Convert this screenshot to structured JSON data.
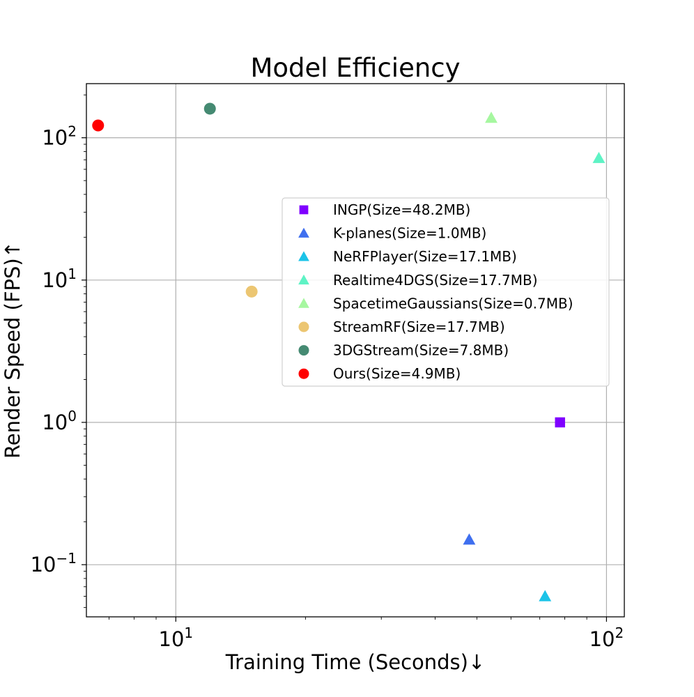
{
  "chart_data": {
    "type": "scatter",
    "title": "Model Efficiency",
    "xlabel": "Training Time (Seconds)↓",
    "ylabel": "Render Speed (FPS)↑",
    "xscale": "log",
    "yscale": "log",
    "xlim": [
      6.2,
      110
    ],
    "ylim": [
      0.043,
      240
    ],
    "grid": true,
    "legend_position": "center-right",
    "x_ticks": [
      {
        "value": 10,
        "base": "10",
        "exp": "1"
      },
      {
        "value": 100,
        "base": "10",
        "exp": "2"
      }
    ],
    "y_ticks": [
      {
        "value": 0.1,
        "base": "10",
        "exp": "−1"
      },
      {
        "value": 1,
        "base": "10",
        "exp": "0"
      },
      {
        "value": 10,
        "base": "10",
        "exp": "1"
      },
      {
        "value": 100,
        "base": "10",
        "exp": "2"
      }
    ],
    "series": [
      {
        "name": "INGP(Size=48.2MB)",
        "marker": "square",
        "color": "#7f00ff",
        "x": 78,
        "y": 1.0
      },
      {
        "name": "K-planes(Size=1.0MB)",
        "marker": "triangle",
        "color": "#3f6fef",
        "x": 48,
        "y": 0.15
      },
      {
        "name": "NeRFPlayer(Size=17.1MB)",
        "marker": "triangle",
        "color": "#1bc3e8",
        "x": 72,
        "y": 0.06
      },
      {
        "name": "Realtime4DGS(Size=17.7MB)",
        "marker": "triangle",
        "color": "#5ef3c5",
        "x": 96,
        "y": 72
      },
      {
        "name": "SpacetimeGaussians(Size=0.7MB)",
        "marker": "triangle",
        "color": "#a6f7a0",
        "x": 54,
        "y": 138
      },
      {
        "name": "StreamRF(Size=17.7MB)",
        "marker": "circle",
        "color": "#ecc672",
        "x": 15,
        "y": 8.3
      },
      {
        "name": "3DGStream(Size=7.8MB)",
        "marker": "circle",
        "color": "#458a72",
        "x": 12,
        "y": 160
      },
      {
        "name": "Ours(Size=4.9MB)",
        "marker": "circle",
        "color": "#ff0000",
        "x": 6.6,
        "y": 122
      }
    ]
  }
}
